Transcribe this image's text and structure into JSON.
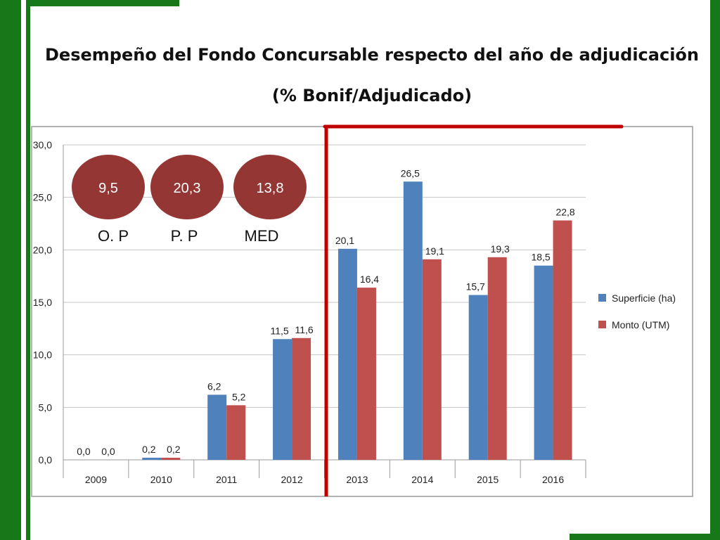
{
  "title_line1": "Desempeño del Fondo Concursable respecto del año de adjudicación",
  "title_line2": "(% Bonif/Adjudicado)",
  "indicators": [
    {
      "value": "9,5",
      "label": "O. P"
    },
    {
      "value": "20,3",
      "label": "P. P"
    },
    {
      "value": "13,8",
      "label": "MED"
    }
  ],
  "colors": {
    "superficie": "#4f81bd",
    "monto": "#c0504d",
    "bubble": "#943634",
    "divider": "#c00000",
    "frame_green": "#17781a"
  },
  "chart_data": {
    "type": "bar",
    "categories": [
      "2009",
      "2010",
      "2011",
      "2012",
      "2013",
      "2014",
      "2015",
      "2016"
    ],
    "series": [
      {
        "name": "Superficie (ha)",
        "values": [
          0.0,
          0.2,
          6.2,
          11.5,
          20.1,
          26.5,
          15.7,
          18.5
        ],
        "labels": [
          "0,0",
          "0,2",
          "6,2",
          "11,5",
          "20,1",
          "26,5",
          "15,7",
          "18,5"
        ]
      },
      {
        "name": "Monto (UTM)",
        "values": [
          0.0,
          0.2,
          5.2,
          11.6,
          16.4,
          19.1,
          19.3,
          22.8
        ],
        "labels": [
          "0,0",
          "0,2",
          "5,2",
          "11,6",
          "16,4",
          "19,1",
          "19,3",
          "22,8"
        ]
      }
    ],
    "ylim": [
      0,
      30
    ],
    "yticks": [
      "0,0",
      "5,0",
      "10,0",
      "15,0",
      "20,0",
      "25,0",
      "30,0"
    ],
    "grid": true,
    "legend_position": "right"
  }
}
